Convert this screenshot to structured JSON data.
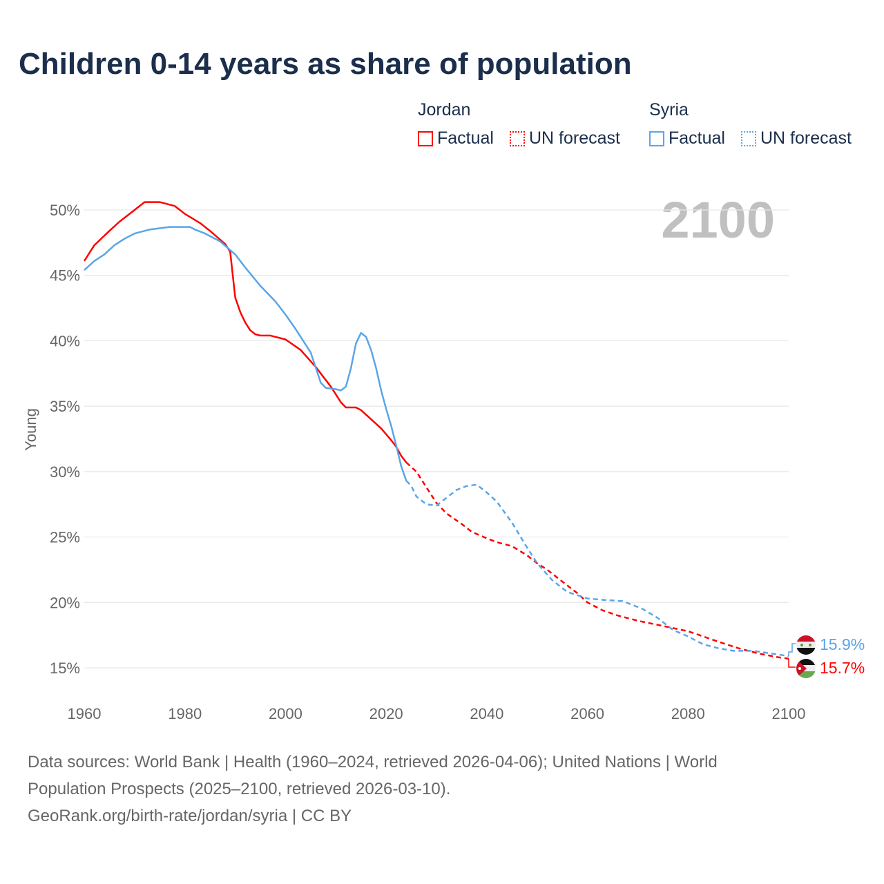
{
  "chart_data": {
    "type": "line",
    "title": "Children 0-14 years as share of population",
    "ylabel": "Young",
    "xlabel": "",
    "xlim": [
      1960,
      2100
    ],
    "ylim": [
      15,
      50
    ],
    "x_ticks": [
      "1960",
      "1980",
      "2000",
      "2020",
      "2040",
      "2060",
      "2080",
      "2100"
    ],
    "y_ticks": [
      "15%",
      "20%",
      "25%",
      "30%",
      "35%",
      "40%",
      "45%",
      "50%"
    ],
    "grid": true,
    "current_year": "2100",
    "legend": {
      "placement": "top-right",
      "groups": [
        {
          "country": "Jordan",
          "factual": "Factual",
          "forecast": "UN forecast",
          "color": "#ff0000"
        },
        {
          "country": "Syria",
          "factual": "Factual",
          "forecast": "UN forecast",
          "color": "#5aa5e8"
        }
      ]
    },
    "series": [
      {
        "name": "Jordan Factual",
        "color": "#ff0000",
        "dashed": false,
        "x": [
          1960,
          1962,
          1965,
          1967,
          1970,
          1972,
          1975,
          1978,
          1980,
          1983,
          1985,
          1988,
          1989,
          1990,
          1991,
          1992,
          1993,
          1994,
          1995,
          1997,
          2000,
          2003,
          2006,
          2009,
          2011,
          2012,
          2014,
          2015,
          2017,
          2019,
          2021,
          2022,
          2023,
          2024
        ],
        "y": [
          46.1,
          47.3,
          48.4,
          49.1,
          50.0,
          50.6,
          50.6,
          50.3,
          49.7,
          49.0,
          48.4,
          47.4,
          46.8,
          43.3,
          42.2,
          41.4,
          40.8,
          40.5,
          40.4,
          40.4,
          40.1,
          39.3,
          38.0,
          36.5,
          35.3,
          34.9,
          34.9,
          34.7,
          34.0,
          33.3,
          32.4,
          31.9,
          31.2,
          30.7
        ]
      },
      {
        "name": "Jordan UN forecast",
        "color": "#ff0000",
        "dashed": true,
        "x": [
          2024,
          2026,
          2028,
          2030,
          2032,
          2035,
          2037,
          2040,
          2042,
          2045,
          2048,
          2050,
          2052,
          2055,
          2058,
          2060,
          2063,
          2066,
          2070,
          2075,
          2080,
          2083,
          2086,
          2090,
          2094,
          2098,
          2100
        ],
        "y": [
          30.7,
          30.0,
          28.8,
          27.6,
          26.8,
          26.0,
          25.4,
          24.9,
          24.6,
          24.3,
          23.6,
          23.0,
          22.5,
          21.6,
          20.7,
          20.0,
          19.4,
          19.0,
          18.6,
          18.2,
          17.8,
          17.4,
          17.0,
          16.5,
          16.1,
          15.8,
          15.7
        ]
      },
      {
        "name": "Syria Factual",
        "color": "#5aa5e8",
        "dashed": false,
        "x": [
          1960,
          1962,
          1964,
          1966,
          1968,
          1970,
          1973,
          1975,
          1977,
          1981,
          1982,
          1984,
          1987,
          1990,
          1992,
          1995,
          1998,
          2000,
          2002,
          2004,
          2005,
          2007,
          2008,
          2010,
          2011,
          2012,
          2013,
          2014,
          2015,
          2016,
          2017,
          2018,
          2019,
          2020,
          2021,
          2022,
          2023,
          2024
        ],
        "y": [
          45.4,
          46.1,
          46.6,
          47.3,
          47.8,
          48.2,
          48.5,
          48.6,
          48.7,
          48.7,
          48.5,
          48.2,
          47.6,
          46.6,
          45.6,
          44.2,
          43.0,
          42.0,
          40.9,
          39.7,
          39.1,
          36.8,
          36.4,
          36.3,
          36.2,
          36.5,
          37.9,
          39.8,
          40.6,
          40.3,
          39.3,
          37.9,
          36.2,
          34.8,
          33.5,
          32.0,
          30.4,
          29.3
        ]
      },
      {
        "name": "Syria UN forecast",
        "color": "#5aa5e8",
        "dashed": true,
        "x": [
          2024,
          2025,
          2026,
          2028,
          2030,
          2032,
          2034,
          2036,
          2038,
          2040,
          2042,
          2045,
          2048,
          2050,
          2053,
          2056,
          2060,
          2063,
          2067,
          2071,
          2074,
          2077,
          2080,
          2083,
          2086,
          2089,
          2093,
          2100
        ],
        "y": [
          29.3,
          28.9,
          28.1,
          27.5,
          27.4,
          28.0,
          28.6,
          28.9,
          29.0,
          28.4,
          27.7,
          26.1,
          24.2,
          23.0,
          21.7,
          20.8,
          20.3,
          20.2,
          20.1,
          19.5,
          18.8,
          17.9,
          17.4,
          16.8,
          16.5,
          16.3,
          16.3,
          15.9
        ]
      }
    ],
    "end_labels": [
      {
        "country": "Syria",
        "value": "15.9%",
        "color": "#5aa5e8"
      },
      {
        "country": "Jordan",
        "value": "15.7%",
        "color": "#ff0000"
      }
    ]
  },
  "footer": {
    "line1": "Data sources: World Bank | Health (1960–2024, retrieved 2026-04-06); United Nations | World",
    "line2": "Population Prospects (2025–2100, retrieved 2026-03-10).",
    "line3": "GeoRank.org/birth-rate/jordan/syria | CC BY"
  }
}
